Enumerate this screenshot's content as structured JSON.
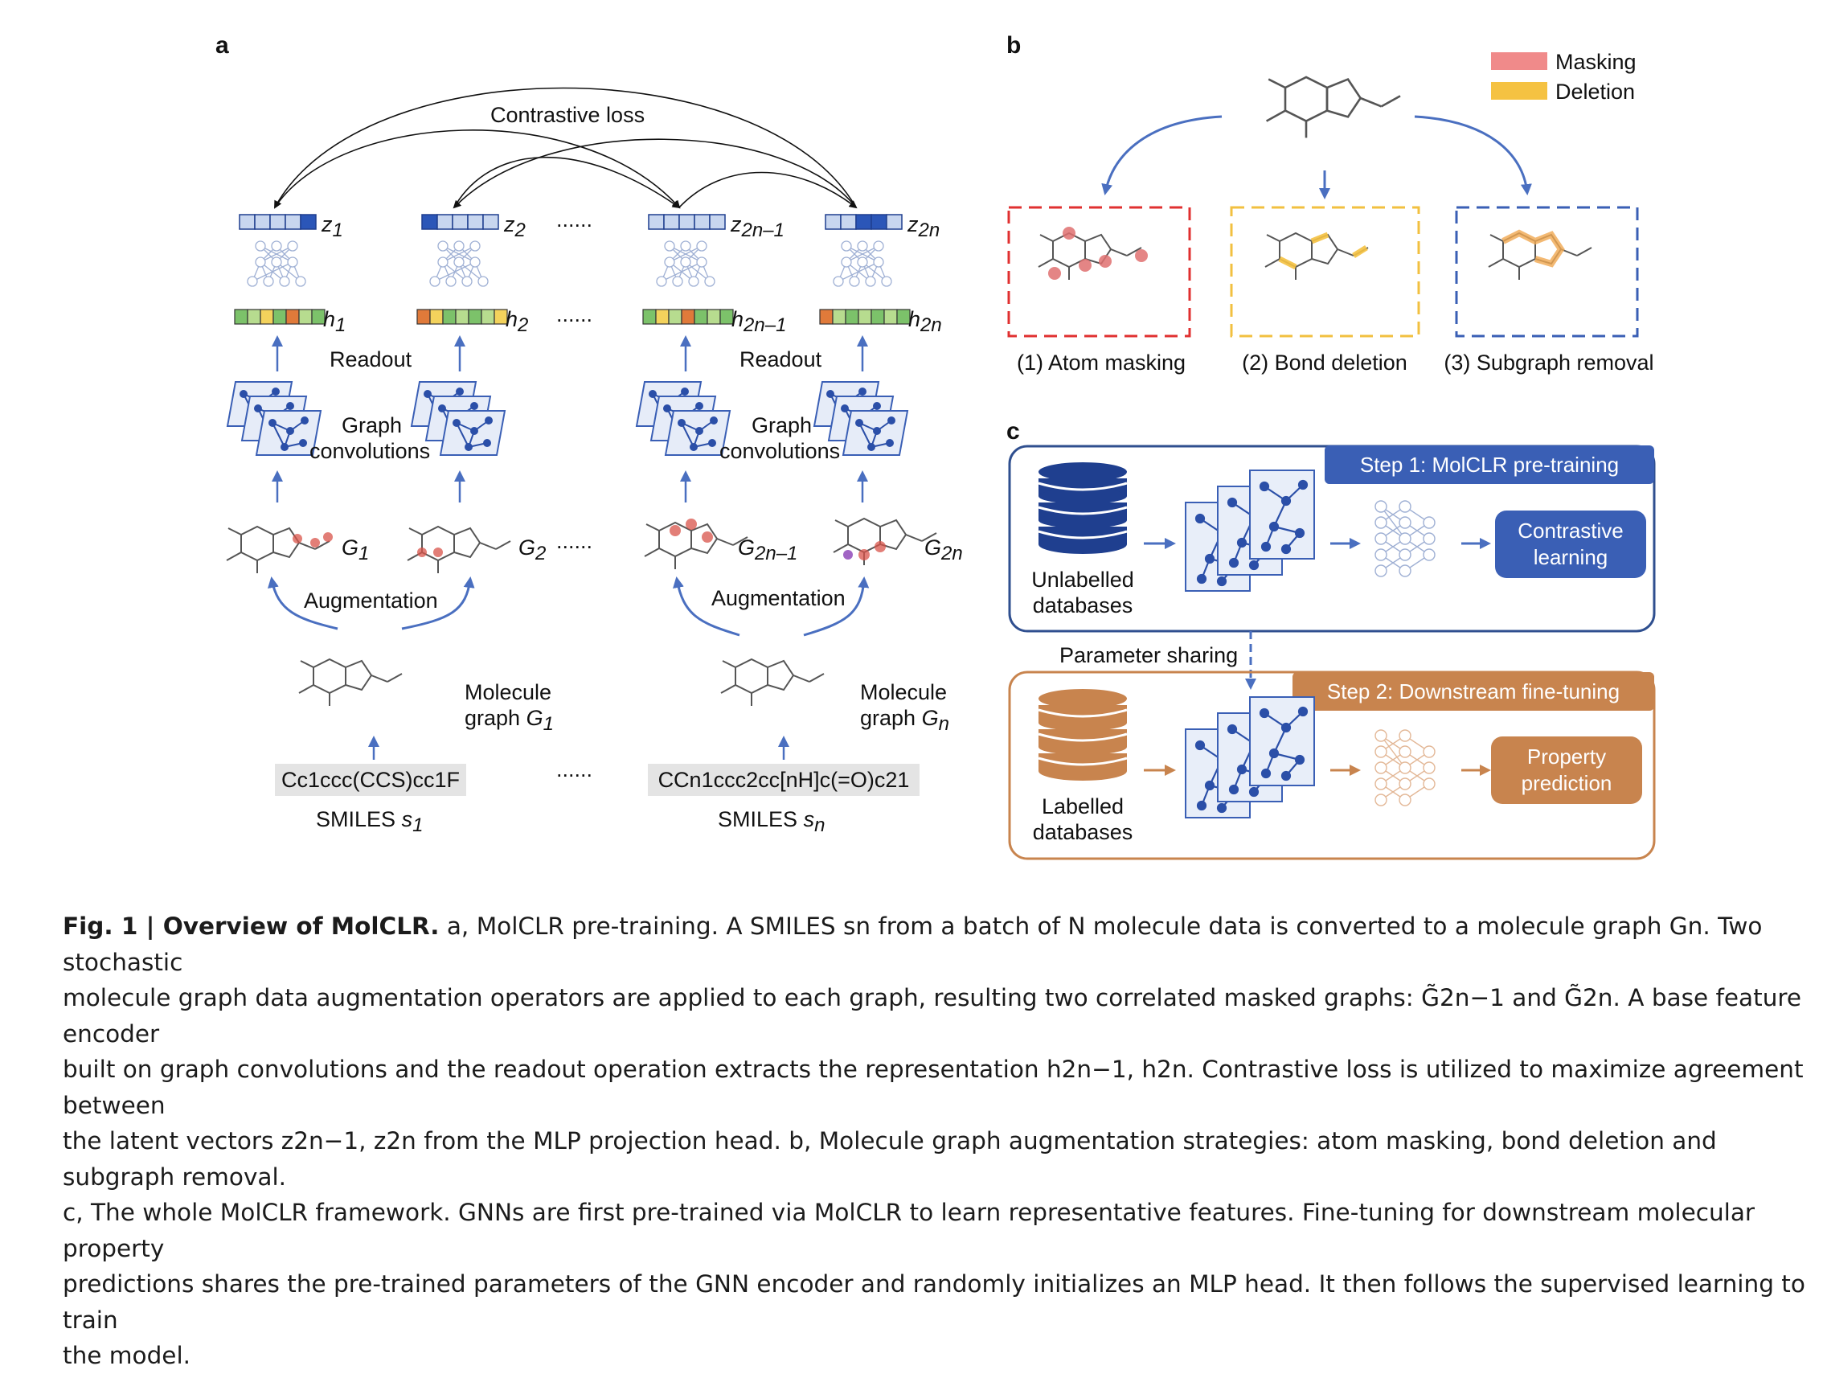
{
  "panels": {
    "a": {
      "letter": "a",
      "contrastive_loss": "Contrastive loss",
      "z_labels": [
        "z",
        "z",
        "z",
        "z"
      ],
      "z_subs": [
        "1",
        "2",
        "2n–1",
        "2n"
      ],
      "h_labels": [
        "h",
        "h",
        "h",
        "h"
      ],
      "h_subs": [
        "1",
        "2",
        "2n–1",
        "2n"
      ],
      "g_labels": [
        "G",
        "G",
        "G",
        "G"
      ],
      "g_subs": [
        "1",
        "2",
        "2n–1",
        "2n"
      ],
      "dots": "......",
      "readout": "Readout",
      "graph_conv_line1": "Graph",
      "graph_conv_line2": "convolutions",
      "augmentation": "Augmentation",
      "molecule_line1": "Molecule",
      "molecule_line2": "graph",
      "molecule_vars": [
        "G",
        "G"
      ],
      "molecule_subs": [
        "1",
        "n"
      ],
      "smiles_strings": [
        "Cc1ccc(CCS)cc1F",
        "CCn1ccc2cc[nH]c(=O)c21"
      ],
      "smiles_label": "SMILES",
      "smiles_vars": [
        "s",
        "s"
      ],
      "smiles_subs": [
        "1",
        "n"
      ]
    },
    "b": {
      "letter": "b",
      "legend": [
        {
          "label": "Masking",
          "color": "#f08a8a"
        },
        {
          "label": "Deletion",
          "color": "#f5c242"
        }
      ],
      "strategies": [
        "(1) Atom masking",
        "(2) Bond deletion",
        "(3) Subgraph removal"
      ],
      "box_colors": [
        "#e03030",
        "#f2c040",
        "#3a5fb5"
      ]
    },
    "c": {
      "letter": "c",
      "step1": "Step 1: MolCLR pre-training",
      "step2": "Step 2: Downstream fine-tuning",
      "unlabelled_line1": "Unlabelled",
      "unlabelled_line2": "databases",
      "labelled_line1": "Labelled",
      "labelled_line2": "databases",
      "parameter_sharing": "Parameter sharing",
      "contrastive_line1": "Contrastive",
      "contrastive_line2": "learning",
      "property_line1": "Property",
      "property_line2": "prediction",
      "colors": {
        "blue": "#3a5fb5",
        "orange": "#c8844e",
        "border_blue": "#2f4f8f"
      }
    }
  },
  "caption": {
    "title": "Fig. 1 | Overview of MolCLR.",
    "lines": [
      "a, MolCLR pre-training. A SMILES sn from a batch of N molecule data is converted to a molecule graph Gn. Two stochastic",
      "molecule graph data augmentation operators are applied to each graph, resulting two correlated masked graphs: G̃2n−1 and G̃2n. A base feature encoder",
      "built on graph convolutions and the readout operation extracts the representation h2n−1, h2n. Contrastive loss is utilized to maximize agreement between",
      "the latent vectors z2n−1, z2n from the MLP projection head. b, Molecule graph augmentation strategies: atom masking, bond deletion and subgraph removal.",
      "c, The whole MolCLR framework. GNNs are first pre-trained via MolCLR to learn representative features. Fine-tuning for downstream molecular property",
      "predictions shares the pre-trained parameters of the GNN encoder and randomly initializes an MLP head. It then follows the supervised learning to train",
      "the model."
    ]
  }
}
